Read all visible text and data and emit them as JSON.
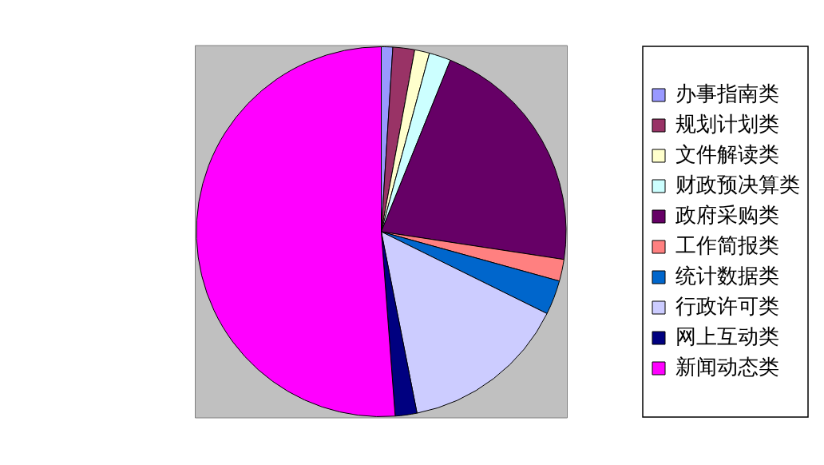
{
  "chart_data": {
    "type": "pie",
    "categories": [
      "办事指南类",
      "规划计划类",
      "文件解读类",
      "财政预决算类",
      "政府采购类",
      "工作简报类",
      "统计数据类",
      "行政许可类",
      "网上互动类",
      "新闻动态类"
    ],
    "values": [
      1.0,
      1.9,
      1.3,
      1.9,
      21.3,
      1.9,
      3.0,
      14.6,
      1.9,
      51.2
    ],
    "colors": [
      "#9999ff",
      "#993366",
      "#ffffcc",
      "#ccffff",
      "#660066",
      "#ff8080",
      "#0066cc",
      "#ccccff",
      "#000080",
      "#ff00ff"
    ],
    "legend": "right"
  }
}
